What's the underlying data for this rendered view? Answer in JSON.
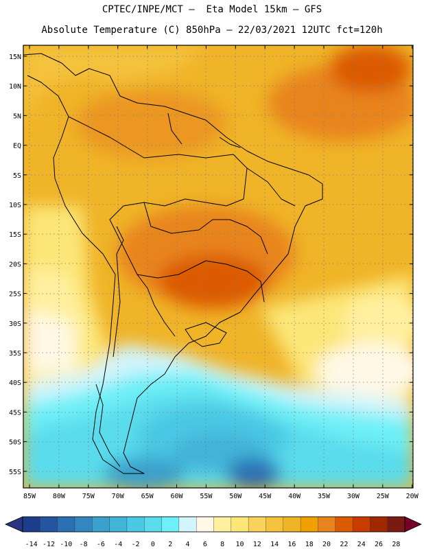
{
  "header": {
    "line1": "CPTEC/INPE/MCT –  Eta Model 15km – GFS",
    "line2": "Absolute Temperature (C) 850hPa – 22/03/2021 12UTC fct=120h"
  },
  "map": {
    "lat_labels": [
      "15N",
      "10N",
      "5N",
      "EQ",
      "5S",
      "10S",
      "15S",
      "20S",
      "25S",
      "30S",
      "35S",
      "40S",
      "45S",
      "50S",
      "55S"
    ],
    "lon_labels": [
      "85W",
      "80W",
      "75W",
      "70W",
      "65W",
      "60W",
      "55W",
      "50W",
      "45W",
      "40W",
      "35W",
      "30W",
      "25W",
      "20W"
    ]
  },
  "colorbar": {
    "labels": [
      "-14",
      "-12",
      "-10",
      "-8",
      "-6",
      "-4",
      "-2",
      "0",
      "2",
      "4",
      "6",
      "8",
      "10",
      "12",
      "14",
      "16",
      "18",
      "20",
      "22",
      "24",
      "26",
      "28"
    ],
    "colors": [
      "#1e3c8c",
      "#2355a0",
      "#2a6eb4",
      "#3287c0",
      "#3aa0cc",
      "#42b4d8",
      "#4ac8e4",
      "#5adcec",
      "#6ef0f8",
      "#d2f4fc",
      "#fff8e6",
      "#fff0a0",
      "#fce678",
      "#f8d25a",
      "#f4c23c",
      "#f0b428",
      "#f0a000",
      "#e8841e",
      "#dc5a00",
      "#c83c00",
      "#a02800",
      "#7a1a10"
    ],
    "under_color": "#2a3480",
    "over_color": "#780028"
  }
}
